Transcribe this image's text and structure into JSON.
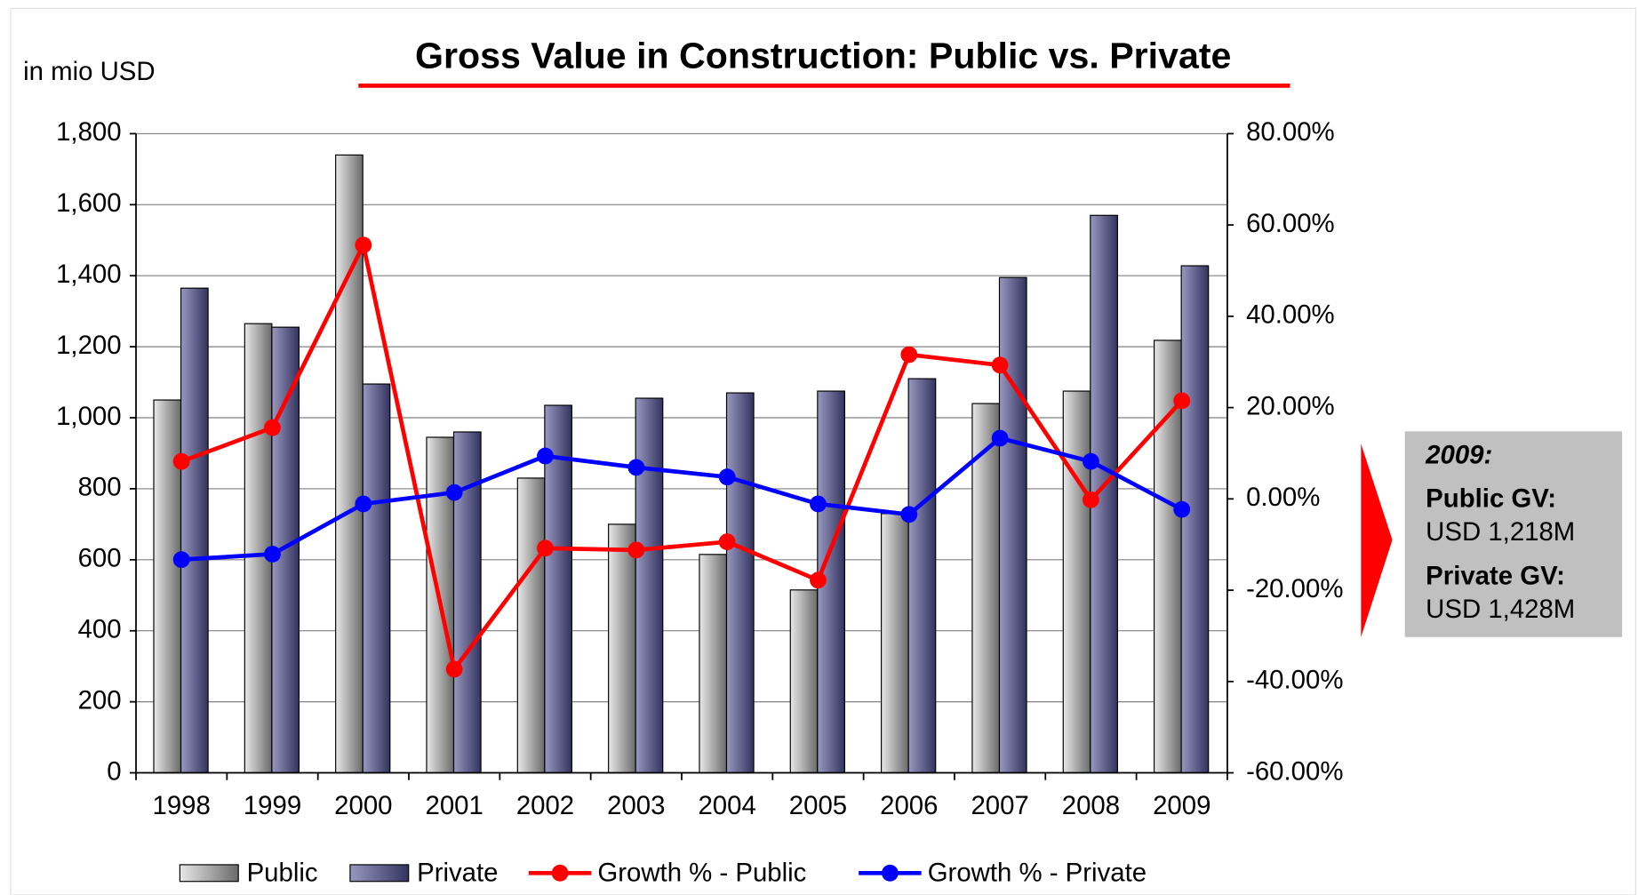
{
  "chart_data": {
    "type": "bar",
    "title": "Gross Value in Construction: Public vs. Private",
    "y_label": "in mio USD",
    "categories": [
      "1998",
      "1999",
      "2000",
      "2001",
      "2002",
      "2003",
      "2004",
      "2005",
      "2006",
      "2007",
      "2008",
      "2009"
    ],
    "series": [
      {
        "name": "Public",
        "color": "#9a9a9a",
        "values": [
          1050,
          1265,
          1740,
          945,
          830,
          700,
          615,
          515,
          730,
          1040,
          1075,
          1218
        ]
      },
      {
        "name": "Private",
        "color": "#55558a",
        "values": [
          1365,
          1255,
          1095,
          960,
          1035,
          1055,
          1070,
          1075,
          1110,
          1395,
          1570,
          1428
        ]
      },
      {
        "name": "Growth % - Public",
        "type": "line",
        "axis": "y2",
        "color": "#ff0000",
        "values": [
          8.2,
          15.6,
          55.6,
          -37.3,
          -10.8,
          -11.2,
          -9.4,
          -17.8,
          31.6,
          29.3,
          -0.2,
          21.5
        ]
      },
      {
        "name": "Growth % - Private",
        "type": "line",
        "axis": "y2",
        "color": "#0000ff",
        "values": [
          -13.3,
          -12.1,
          -1.1,
          1.4,
          9.4,
          6.9,
          4.8,
          -1.1,
          -3.4,
          13.3,
          8.2,
          -2.3
        ]
      }
    ],
    "ylim": [
      0,
      1800
    ],
    "yticks": [
      0,
      200,
      400,
      600,
      800,
      {
        "value": 1000,
        "label": "1,000"
      },
      {
        "value": 1200,
        "label": "1,200"
      },
      {
        "value": 1400,
        "label": "1,400"
      },
      {
        "value": 1600,
        "label": "1,600"
      },
      {
        "value": 1800,
        "label": "1,800"
      }
    ],
    "y2lim": [
      -60,
      80
    ],
    "y2ticks": [
      {
        "value": -60,
        "label": "-60.00%"
      },
      {
        "value": -40,
        "label": "-40.00%"
      },
      {
        "value": -20,
        "label": "-20.00%"
      },
      {
        "value": 0,
        "label": "0.00%"
      },
      {
        "value": 20,
        "label": "20.00%"
      },
      {
        "value": 40,
        "label": "40.00%"
      },
      {
        "value": 60,
        "label": "60.00%"
      },
      {
        "value": 80,
        "label": "80.00%"
      }
    ],
    "grid": true,
    "legend": "bottom",
    "annotation": {
      "heading": "2009:",
      "lines": [
        [
          "Public GV:",
          "USD 1,218M"
        ],
        [
          "Private GV:",
          "USD 1,428M"
        ]
      ]
    }
  }
}
